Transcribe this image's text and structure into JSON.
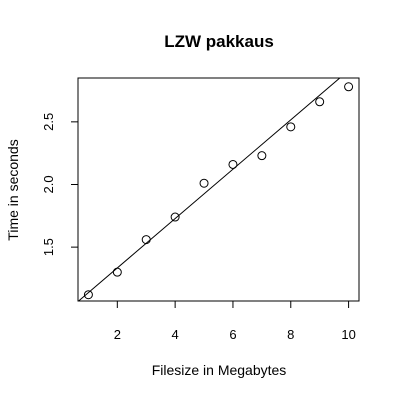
{
  "chart_data": {
    "type": "scatter",
    "title": "LZW pakkaus",
    "xlabel": "Filesize in Megabytes",
    "ylabel": "Time in seconds",
    "xlim": [
      0.64,
      10.36
    ],
    "ylim": [
      1.07,
      2.85
    ],
    "xticks": [
      2,
      4,
      6,
      8,
      10
    ],
    "yticks": [
      1.5,
      2.0,
      2.5
    ],
    "xtick_labels": [
      "2",
      "4",
      "6",
      "8",
      "10"
    ],
    "ytick_labels": [
      "1.5",
      "2.0",
      "2.5"
    ],
    "series": [
      {
        "marker": "open-circle",
        "x": [
          1,
          2,
          3,
          4,
          5,
          6,
          7,
          8,
          9,
          10
        ],
        "y": [
          1.12,
          1.3,
          1.56,
          1.74,
          2.01,
          2.16,
          2.23,
          2.46,
          2.66,
          2.78
        ]
      }
    ],
    "fit_line": {
      "type": "linear",
      "intercept": 0.94,
      "slope": 0.197
    },
    "grid": false,
    "legend": "none"
  }
}
